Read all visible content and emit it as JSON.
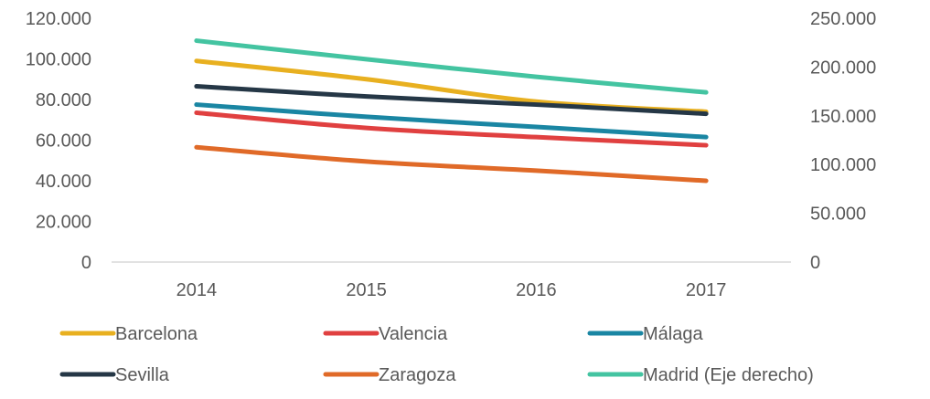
{
  "chart_data": {
    "type": "line",
    "categories": [
      "2014",
      "2015",
      "2016",
      "2017"
    ],
    "left_axis": {
      "ylim": [
        0,
        120000
      ],
      "ticks": [
        0,
        20000,
        40000,
        60000,
        80000,
        100000,
        120000
      ],
      "tick_labels": [
        "0",
        "20.000",
        "40.000",
        "60.000",
        "80.000",
        "100.000",
        "120.000"
      ]
    },
    "right_axis": {
      "ylim": [
        0,
        250000
      ],
      "ticks": [
        0,
        50000,
        100000,
        150000,
        200000,
        250000
      ],
      "tick_labels": [
        "0",
        "50.000",
        "100.000",
        "150.000",
        "200.000",
        "250.000"
      ]
    },
    "series": [
      {
        "name": "Barcelona",
        "axis": "left",
        "color": "#E8B020",
        "values": [
          99000,
          90000,
          79000,
          74000
        ]
      },
      {
        "name": "Valencia",
        "axis": "left",
        "color": "#E04040",
        "values": [
          73500,
          66000,
          61500,
          57500
        ]
      },
      {
        "name": "Málaga",
        "axis": "left",
        "color": "#1A86A3",
        "values": [
          77500,
          71500,
          66500,
          61500
        ]
      },
      {
        "name": "Sevilla",
        "axis": "left",
        "color": "#253746",
        "values": [
          86500,
          81500,
          77500,
          73000
        ]
      },
      {
        "name": "Zaragoza",
        "axis": "left",
        "color": "#E06A28",
        "values": [
          56500,
          49500,
          45000,
          40000
        ]
      },
      {
        "name": "Madrid (Eje derecho)",
        "axis": "right",
        "color": "#44C4A1",
        "values": [
          227000,
          208000,
          190000,
          174000
        ]
      }
    ],
    "legend_position": "bottom",
    "grid": false
  }
}
